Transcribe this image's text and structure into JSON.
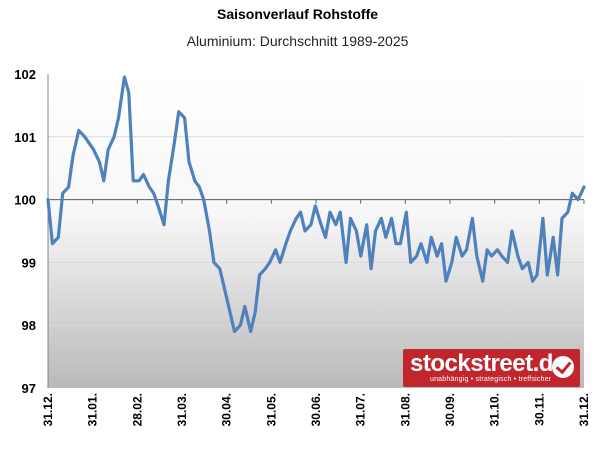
{
  "chart_data": {
    "type": "line",
    "title": "Saisonverlauf Rohstoffe",
    "subtitle": "Aluminium: Durchschnitt 1989-2025",
    "xlabel": "",
    "ylabel": "",
    "ylim": [
      97,
      102
    ],
    "yticks": [
      "97",
      "98",
      "99",
      "100",
      "101",
      "102"
    ],
    "xticks": [
      "31.12.",
      "31.01.",
      "28.02.",
      "31.03.",
      "30.04.",
      "31.05.",
      "30.06.",
      "31.07.",
      "31.08.",
      "30.09.",
      "31.10.",
      "30.11.",
      "31.12."
    ],
    "grid": true,
    "series_color": "#4f81bd",
    "x": [
      0,
      3,
      7,
      10,
      14,
      17,
      21,
      25,
      28,
      31,
      35,
      38,
      41,
      45,
      48,
      52,
      55,
      58,
      62,
      65,
      69,
      72,
      75,
      79,
      82,
      86,
      89,
      93,
      96,
      100,
      103,
      106,
      110,
      113,
      117,
      120,
      124,
      127,
      131,
      134,
      138,
      141,
      144,
      148,
      151,
      155,
      158,
      162,
      165,
      169,
      172,
      175,
      179,
      182,
      186,
      189,
      192,
      196,
      199,
      203,
      206,
      210,
      213,
      217,
      220,
      223,
      227,
      230,
      234,
      237,
      240,
      244,
      247,
      251,
      254,
      258,
      261,
      265,
      268,
      271,
      275,
      278,
      282,
      285,
      289,
      292,
      296,
      299,
      302,
      306,
      309,
      313,
      316,
      320,
      323,
      327,
      330,
      333,
      337,
      340,
      344,
      347,
      350,
      354,
      357,
      361,
      365
    ],
    "values": [
      100.0,
      99.3,
      99.4,
      100.1,
      100.2,
      100.7,
      101.1,
      101.0,
      100.9,
      100.8,
      100.6,
      100.3,
      100.8,
      101.0,
      101.3,
      101.95,
      101.7,
      100.3,
      100.3,
      100.4,
      100.2,
      100.1,
      99.9,
      99.6,
      100.3,
      100.9,
      101.4,
      101.3,
      100.6,
      100.3,
      100.2,
      100.0,
      99.5,
      99.0,
      98.9,
      98.6,
      98.2,
      97.9,
      98.0,
      98.3,
      97.9,
      98.2,
      98.8,
      98.9,
      99.0,
      99.2,
      99.0,
      99.3,
      99.5,
      99.7,
      99.8,
      99.5,
      99.6,
      99.9,
      99.6,
      99.4,
      99.8,
      99.6,
      99.8,
      99.0,
      99.7,
      99.5,
      99.1,
      99.6,
      98.9,
      99.5,
      99.7,
      99.4,
      99.7,
      99.3,
      99.3,
      99.8,
      99.0,
      99.1,
      99.3,
      99.0,
      99.4,
      99.1,
      99.3,
      98.7,
      99.0,
      99.4,
      99.1,
      99.2,
      99.7,
      99.1,
      98.7,
      99.2,
      99.1,
      99.2,
      99.1,
      99.0,
      99.5,
      99.1,
      98.9,
      99.0,
      98.7,
      98.8,
      99.7,
      98.8,
      99.4,
      98.8,
      99.7,
      99.8,
      100.1,
      100.0,
      100.2
    ]
  },
  "brand": {
    "name": "stockstreet.de",
    "tagline": "unabhängig • strategisch • treffsicher",
    "color": "#c0262c"
  }
}
